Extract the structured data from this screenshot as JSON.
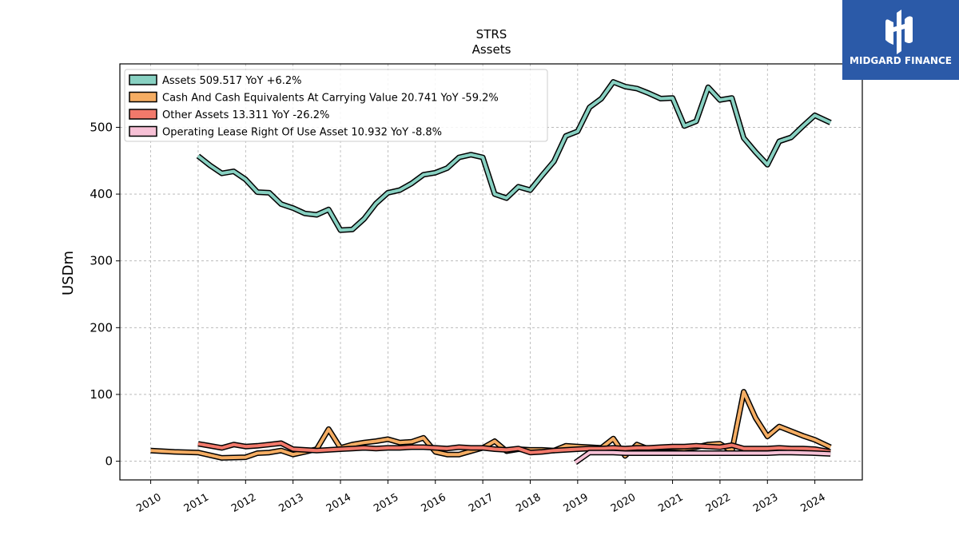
{
  "brand": {
    "name": "MIDGARD FINANCE",
    "bg_color": "#2b5aa8"
  },
  "chart_data": {
    "type": "line",
    "title": "STRS",
    "subtitle": "Assets",
    "ylabel": "USDm",
    "xlabel": "",
    "ylim": [
      -28,
      595
    ],
    "yticks": [
      0,
      100,
      200,
      300,
      400,
      500
    ],
    "xlim": [
      2009.35,
      2025.0
    ],
    "xticks": [
      "2010",
      "2011",
      "2012",
      "2013",
      "2014",
      "2015",
      "2016",
      "2017",
      "2018",
      "2019",
      "2020",
      "2021",
      "2022",
      "2023",
      "2024"
    ],
    "grid": true,
    "legend_position": "top-left",
    "series": [
      {
        "name": "Assets  509.517 YoY +6.2%",
        "color": "#88d1c2",
        "points": [
          [
            2011.0,
            457
          ],
          [
            2011.25,
            443
          ],
          [
            2011.5,
            431
          ],
          [
            2011.75,
            434
          ],
          [
            2012.0,
            422
          ],
          [
            2012.25,
            403
          ],
          [
            2012.5,
            402
          ],
          [
            2012.75,
            385
          ],
          [
            2013.0,
            379
          ],
          [
            2013.25,
            371
          ],
          [
            2013.5,
            369
          ],
          [
            2013.75,
            377
          ],
          [
            2014.0,
            346
          ],
          [
            2014.25,
            347
          ],
          [
            2014.5,
            363
          ],
          [
            2014.75,
            386
          ],
          [
            2015.0,
            402
          ],
          [
            2015.25,
            406
          ],
          [
            2015.5,
            416
          ],
          [
            2015.75,
            429
          ],
          [
            2016.0,
            432
          ],
          [
            2016.25,
            439
          ],
          [
            2016.5,
            455
          ],
          [
            2016.75,
            459
          ],
          [
            2017.0,
            455
          ],
          [
            2017.25,
            400
          ],
          [
            2017.5,
            394
          ],
          [
            2017.75,
            411
          ],
          [
            2018.0,
            406
          ],
          [
            2018.25,
            428
          ],
          [
            2018.5,
            449
          ],
          [
            2018.75,
            487
          ],
          [
            2019.0,
            494
          ],
          [
            2019.25,
            530
          ],
          [
            2019.5,
            543
          ],
          [
            2019.75,
            568
          ],
          [
            2020.0,
            561
          ],
          [
            2020.25,
            558
          ],
          [
            2020.5,
            551
          ],
          [
            2020.75,
            543
          ],
          [
            2021.0,
            544
          ],
          [
            2021.25,
            502
          ],
          [
            2021.5,
            509
          ],
          [
            2021.75,
            560
          ],
          [
            2022.0,
            541
          ],
          [
            2022.25,
            544
          ],
          [
            2022.5,
            484
          ],
          [
            2022.75,
            463
          ],
          [
            2023.0,
            444
          ],
          [
            2023.25,
            479
          ],
          [
            2023.5,
            485
          ],
          [
            2023.75,
            502
          ],
          [
            2024.0,
            518
          ],
          [
            2024.33,
            507
          ]
        ]
      },
      {
        "name": "Cash And Cash Equivalents At Carrying Value  20.741 YoY -59.2%",
        "color": "#f5ad63",
        "points": [
          [
            2010.0,
            16
          ],
          [
            2010.5,
            14
          ],
          [
            2011.0,
            13
          ],
          [
            2011.5,
            5
          ],
          [
            2012.0,
            6
          ],
          [
            2012.25,
            12
          ],
          [
            2012.5,
            13
          ],
          [
            2012.75,
            16
          ],
          [
            2013.0,
            10
          ],
          [
            2013.25,
            14
          ],
          [
            2013.5,
            18
          ],
          [
            2013.75,
            48
          ],
          [
            2014.0,
            20
          ],
          [
            2014.25,
            25
          ],
          [
            2014.5,
            28
          ],
          [
            2014.75,
            30
          ],
          [
            2015.0,
            33
          ],
          [
            2015.25,
            28
          ],
          [
            2015.5,
            29
          ],
          [
            2015.75,
            35
          ],
          [
            2016.0,
            14
          ],
          [
            2016.25,
            10
          ],
          [
            2016.5,
            10
          ],
          [
            2016.75,
            15
          ],
          [
            2017.0,
            20
          ],
          [
            2017.25,
            30
          ],
          [
            2017.5,
            15
          ],
          [
            2017.75,
            18
          ],
          [
            2018.0,
            17
          ],
          [
            2018.25,
            17
          ],
          [
            2018.5,
            16
          ],
          [
            2018.75,
            23
          ],
          [
            2019.0,
            22
          ],
          [
            2019.25,
            21
          ],
          [
            2019.5,
            20
          ],
          [
            2019.75,
            34
          ],
          [
            2020.0,
            8
          ],
          [
            2020.25,
            25
          ],
          [
            2020.5,
            18
          ],
          [
            2020.75,
            20
          ],
          [
            2021.0,
            20
          ],
          [
            2021.25,
            19
          ],
          [
            2021.5,
            21
          ],
          [
            2021.75,
            25
          ],
          [
            2022.0,
            26
          ],
          [
            2022.25,
            15
          ],
          [
            2022.5,
            104
          ],
          [
            2022.75,
            65
          ],
          [
            2023.0,
            37
          ],
          [
            2023.25,
            52
          ],
          [
            2023.5,
            45
          ],
          [
            2023.75,
            38
          ],
          [
            2024.0,
            32
          ],
          [
            2024.33,
            21
          ]
        ]
      },
      {
        "name": "Other Assets  13.311 YoY -26.2%",
        "color": "#f2796b",
        "points": [
          [
            2011.0,
            26
          ],
          [
            2011.25,
            23
          ],
          [
            2011.5,
            20
          ],
          [
            2011.75,
            25
          ],
          [
            2012.0,
            22
          ],
          [
            2012.25,
            23
          ],
          [
            2012.5,
            25
          ],
          [
            2012.75,
            27
          ],
          [
            2013.0,
            18
          ],
          [
            2013.25,
            17
          ],
          [
            2013.5,
            16
          ],
          [
            2013.75,
            17
          ],
          [
            2014.0,
            18
          ],
          [
            2014.25,
            19
          ],
          [
            2014.5,
            20
          ],
          [
            2014.75,
            19
          ],
          [
            2015.0,
            20
          ],
          [
            2015.25,
            20
          ],
          [
            2015.5,
            21
          ],
          [
            2015.75,
            21
          ],
          [
            2016.0,
            20
          ],
          [
            2016.25,
            19
          ],
          [
            2016.5,
            21
          ],
          [
            2016.75,
            20
          ],
          [
            2017.0,
            20
          ],
          [
            2017.25,
            18
          ],
          [
            2017.5,
            17
          ],
          [
            2017.75,
            19
          ],
          [
            2018.0,
            13
          ],
          [
            2018.25,
            14
          ],
          [
            2018.5,
            16
          ],
          [
            2018.75,
            17
          ],
          [
            2019.0,
            18
          ],
          [
            2019.25,
            19
          ],
          [
            2019.5,
            19
          ],
          [
            2019.75,
            20
          ],
          [
            2020.0,
            19
          ],
          [
            2020.25,
            20
          ],
          [
            2020.5,
            20
          ],
          [
            2020.75,
            21
          ],
          [
            2021.0,
            22
          ],
          [
            2021.25,
            22
          ],
          [
            2021.5,
            23
          ],
          [
            2021.75,
            22
          ],
          [
            2022.0,
            21
          ],
          [
            2022.25,
            24
          ],
          [
            2022.5,
            19
          ],
          [
            2022.75,
            19
          ],
          [
            2023.0,
            19
          ],
          [
            2023.25,
            20
          ],
          [
            2023.5,
            19
          ],
          [
            2023.75,
            19
          ],
          [
            2024.0,
            18
          ],
          [
            2024.33,
            14
          ]
        ]
      },
      {
        "name": "Operating Lease Right Of Use Asset  10.932 YoY -8.8%",
        "color": "#f7c1d6",
        "points": [
          [
            2018.95,
            -2
          ],
          [
            2019.25,
            13
          ],
          [
            2019.5,
            13
          ],
          [
            2019.75,
            13
          ],
          [
            2020.0,
            12
          ],
          [
            2020.5,
            12
          ],
          [
            2021.0,
            12
          ],
          [
            2021.5,
            12
          ],
          [
            2022.0,
            12
          ],
          [
            2022.5,
            12
          ],
          [
            2023.0,
            12
          ],
          [
            2023.25,
            13
          ],
          [
            2023.5,
            13
          ],
          [
            2024.0,
            12
          ],
          [
            2024.33,
            11
          ]
        ]
      }
    ]
  }
}
